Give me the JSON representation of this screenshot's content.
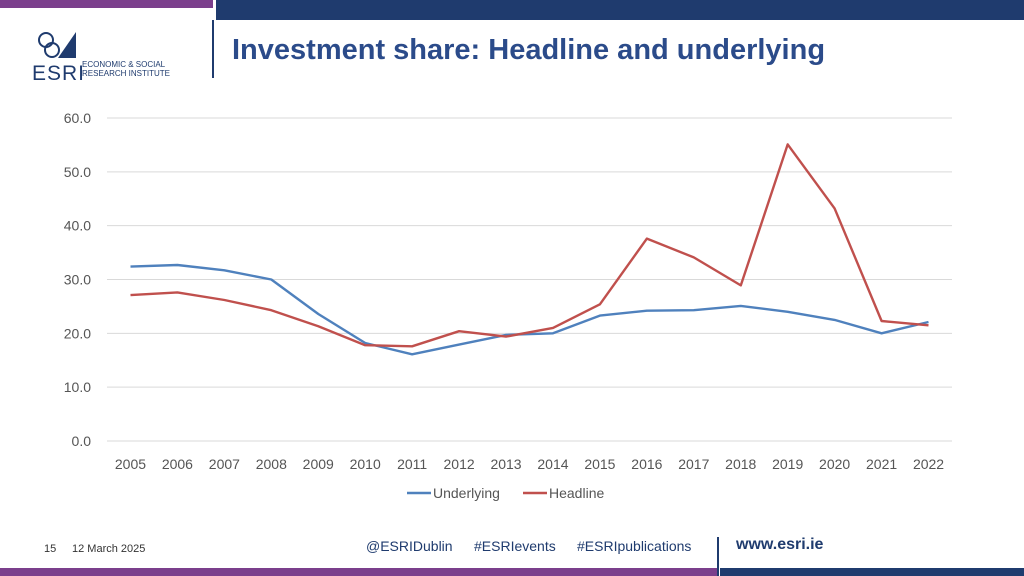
{
  "header": {
    "title": "Investment share: Headline and underlying",
    "logo_word": "ESRI",
    "logo_sub_line1": "ECONOMIC & SOCIAL",
    "logo_sub_line2": "RESEARCH INSTITUTE"
  },
  "footer": {
    "page_number": "15",
    "date": "12 March 2025",
    "social": [
      "@ESRIDublin",
      "#ESRIevents",
      "#ESRIpublications"
    ],
    "website": "www.esri.ie"
  },
  "colors": {
    "underlying": "#4f81bd",
    "headline": "#c0504d",
    "brand_navy": "#1f3b6e",
    "brand_purple": "#7b3f8c"
  },
  "chart_data": {
    "type": "line",
    "title": "",
    "xlabel": "",
    "ylabel": "",
    "ylim": [
      0,
      60
    ],
    "yticks": [
      "0.0",
      "10.0",
      "20.0",
      "30.0",
      "40.0",
      "50.0",
      "60.0"
    ],
    "grid": true,
    "legend_position": "bottom",
    "x": [
      "2005",
      "2006",
      "2007",
      "2008",
      "2009",
      "2010",
      "2011",
      "2012",
      "2013",
      "2014",
      "2015",
      "2016",
      "2017",
      "2018",
      "2019",
      "2020",
      "2021",
      "2022"
    ],
    "series": [
      {
        "name": "Underlying",
        "values": [
          32.4,
          32.7,
          31.7,
          30.0,
          23.6,
          18.2,
          16.1,
          17.9,
          19.7,
          20.0,
          23.3,
          24.2,
          24.3,
          25.1,
          24.0,
          22.5,
          20.0,
          22.1
        ]
      },
      {
        "name": "Headline",
        "values": [
          27.1,
          27.6,
          26.2,
          24.3,
          21.3,
          17.8,
          17.6,
          20.4,
          19.4,
          21.0,
          25.4,
          37.6,
          34.1,
          28.9,
          55.1,
          43.2,
          22.3,
          21.5
        ]
      }
    ]
  }
}
